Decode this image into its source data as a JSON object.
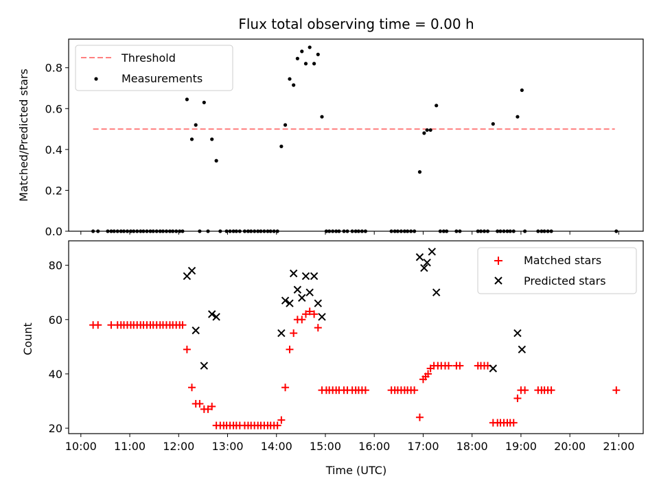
{
  "chart_data": [
    {
      "type": "scatter",
      "title": "Flux total observing time = 0.00 h",
      "xlabel": "",
      "ylabel": "Matched/Predicted stars",
      "xlim": [
        9.75,
        21.5
      ],
      "ylim": [
        0.0,
        0.94
      ],
      "yticks": [
        0.0,
        0.2,
        0.4,
        0.6,
        0.8
      ],
      "ytick_labels": [
        "0.0",
        "0.2",
        "0.4",
        "0.6",
        "0.8"
      ],
      "legend_position": "top-left",
      "series": [
        {
          "name": "Threshold",
          "kind": "dashed-line",
          "color": "#ff7f7f",
          "points": [
            [
              10.25,
              0.5
            ],
            [
              20.92,
              0.5
            ]
          ]
        },
        {
          "name": "Measurements",
          "kind": "dots",
          "color": "#000000",
          "points": [
            [
              10.25,
              0
            ],
            [
              10.35,
              0
            ],
            [
              10.55,
              0
            ],
            [
              10.62,
              0
            ],
            [
              10.68,
              0
            ],
            [
              10.75,
              0
            ],
            [
              10.82,
              0
            ],
            [
              10.88,
              0
            ],
            [
              10.95,
              0
            ],
            [
              11.02,
              0
            ],
            [
              11.08,
              0
            ],
            [
              11.15,
              0
            ],
            [
              11.22,
              0
            ],
            [
              11.28,
              0
            ],
            [
              11.35,
              0
            ],
            [
              11.42,
              0
            ],
            [
              11.48,
              0
            ],
            [
              11.55,
              0
            ],
            [
              11.62,
              0
            ],
            [
              11.68,
              0
            ],
            [
              11.75,
              0
            ],
            [
              11.82,
              0
            ],
            [
              11.88,
              0
            ],
            [
              11.95,
              0
            ],
            [
              12.02,
              0
            ],
            [
              12.08,
              0
            ],
            [
              12.17,
              0.645
            ],
            [
              12.27,
              0.45
            ],
            [
              12.35,
              0.52
            ],
            [
              12.43,
              0
            ],
            [
              12.52,
              0.63
            ],
            [
              12.6,
              0
            ],
            [
              12.68,
              0.45
            ],
            [
              12.77,
              0.345
            ],
            [
              12.85,
              0
            ],
            [
              12.98,
              0
            ],
            [
              13.05,
              0
            ],
            [
              13.12,
              0
            ],
            [
              13.18,
              0
            ],
            [
              13.25,
              0
            ],
            [
              13.35,
              0
            ],
            [
              13.42,
              0
            ],
            [
              13.48,
              0
            ],
            [
              13.55,
              0
            ],
            [
              13.62,
              0
            ],
            [
              13.68,
              0
            ],
            [
              13.75,
              0
            ],
            [
              13.82,
              0
            ],
            [
              13.88,
              0
            ],
            [
              13.95,
              0
            ],
            [
              14.02,
              0
            ],
            [
              14.1,
              0.415
            ],
            [
              14.18,
              0.52
            ],
            [
              14.27,
              0.745
            ],
            [
              14.35,
              0.715
            ],
            [
              14.43,
              0.845
            ],
            [
              14.52,
              0.88
            ],
            [
              14.6,
              0.82
            ],
            [
              14.68,
              0.9
            ],
            [
              14.77,
              0.82
            ],
            [
              14.85,
              0.865
            ],
            [
              14.93,
              0.56
            ],
            [
              15.02,
              0
            ],
            [
              15.08,
              0
            ],
            [
              15.15,
              0
            ],
            [
              15.22,
              0
            ],
            [
              15.28,
              0
            ],
            [
              15.38,
              0
            ],
            [
              15.45,
              0
            ],
            [
              15.55,
              0
            ],
            [
              15.62,
              0
            ],
            [
              15.68,
              0
            ],
            [
              15.75,
              0
            ],
            [
              15.82,
              0
            ],
            [
              16.35,
              0
            ],
            [
              16.42,
              0
            ],
            [
              16.48,
              0
            ],
            [
              16.55,
              0
            ],
            [
              16.62,
              0
            ],
            [
              16.68,
              0
            ],
            [
              16.75,
              0
            ],
            [
              16.82,
              0
            ],
            [
              16.93,
              0.29
            ],
            [
              17.02,
              0.48
            ],
            [
              17.08,
              0.495
            ],
            [
              17.15,
              0.495
            ],
            [
              17.27,
              0.615
            ],
            [
              17.35,
              0
            ],
            [
              17.42,
              0
            ],
            [
              17.48,
              0
            ],
            [
              17.68,
              0
            ],
            [
              17.75,
              0
            ],
            [
              18.12,
              0
            ],
            [
              18.18,
              0
            ],
            [
              18.25,
              0
            ],
            [
              18.32,
              0
            ],
            [
              18.43,
              0.525
            ],
            [
              18.52,
              0
            ],
            [
              18.58,
              0
            ],
            [
              18.65,
              0
            ],
            [
              18.72,
              0
            ],
            [
              18.78,
              0
            ],
            [
              18.85,
              0
            ],
            [
              18.93,
              0.56
            ],
            [
              19.02,
              0.69
            ],
            [
              19.08,
              0
            ],
            [
              19.35,
              0
            ],
            [
              19.42,
              0
            ],
            [
              19.48,
              0
            ],
            [
              19.55,
              0
            ],
            [
              19.62,
              0
            ],
            [
              20.95,
              0
            ]
          ]
        }
      ]
    },
    {
      "type": "scatter",
      "title": "",
      "xlabel": "Time (UTC)",
      "ylabel": "Count",
      "xlim": [
        9.75,
        21.5
      ],
      "ylim": [
        18,
        89
      ],
      "xticks": [
        10,
        11,
        12,
        13,
        14,
        15,
        16,
        17,
        18,
        19,
        20,
        21
      ],
      "xtick_labels": [
        "10:00",
        "11:00",
        "12:00",
        "13:00",
        "14:00",
        "15:00",
        "16:00",
        "17:00",
        "18:00",
        "19:00",
        "20:00",
        "21:00"
      ],
      "yticks": [
        20,
        40,
        60,
        80
      ],
      "ytick_labels": [
        "20",
        "40",
        "60",
        "80"
      ],
      "legend_position": "top-right",
      "series": [
        {
          "name": "Matched stars",
          "kind": "plus",
          "color": "#ff0000",
          "points": [
            [
              10.25,
              58
            ],
            [
              10.35,
              58
            ],
            [
              10.62,
              58
            ],
            [
              10.75,
              58
            ],
            [
              10.82,
              58
            ],
            [
              10.88,
              58
            ],
            [
              10.95,
              58
            ],
            [
              11.02,
              58
            ],
            [
              11.08,
              58
            ],
            [
              11.15,
              58
            ],
            [
              11.22,
              58
            ],
            [
              11.28,
              58
            ],
            [
              11.35,
              58
            ],
            [
              11.42,
              58
            ],
            [
              11.48,
              58
            ],
            [
              11.55,
              58
            ],
            [
              11.62,
              58
            ],
            [
              11.68,
              58
            ],
            [
              11.75,
              58
            ],
            [
              11.82,
              58
            ],
            [
              11.88,
              58
            ],
            [
              11.95,
              58
            ],
            [
              12.02,
              58
            ],
            [
              12.08,
              58
            ],
            [
              12.17,
              49
            ],
            [
              12.27,
              35
            ],
            [
              12.35,
              29
            ],
            [
              12.43,
              29
            ],
            [
              12.52,
              27
            ],
            [
              12.6,
              27
            ],
            [
              12.68,
              28
            ],
            [
              12.77,
              21
            ],
            [
              12.85,
              21
            ],
            [
              12.92,
              21
            ],
            [
              12.98,
              21
            ],
            [
              13.05,
              21
            ],
            [
              13.12,
              21
            ],
            [
              13.18,
              21
            ],
            [
              13.25,
              21
            ],
            [
              13.35,
              21
            ],
            [
              13.42,
              21
            ],
            [
              13.48,
              21
            ],
            [
              13.55,
              21
            ],
            [
              13.62,
              21
            ],
            [
              13.68,
              21
            ],
            [
              13.75,
              21
            ],
            [
              13.82,
              21
            ],
            [
              13.88,
              21
            ],
            [
              13.95,
              21
            ],
            [
              14.02,
              21
            ],
            [
              14.1,
              23
            ],
            [
              14.18,
              35
            ],
            [
              14.27,
              49
            ],
            [
              14.35,
              55
            ],
            [
              14.43,
              60
            ],
            [
              14.52,
              60
            ],
            [
              14.6,
              62
            ],
            [
              14.68,
              63
            ],
            [
              14.77,
              62
            ],
            [
              14.85,
              57
            ],
            [
              14.93,
              34
            ],
            [
              15.02,
              34
            ],
            [
              15.08,
              34
            ],
            [
              15.15,
              34
            ],
            [
              15.22,
              34
            ],
            [
              15.28,
              34
            ],
            [
              15.38,
              34
            ],
            [
              15.45,
              34
            ],
            [
              15.55,
              34
            ],
            [
              15.62,
              34
            ],
            [
              15.68,
              34
            ],
            [
              15.75,
              34
            ],
            [
              15.82,
              34
            ],
            [
              16.35,
              34
            ],
            [
              16.42,
              34
            ],
            [
              16.48,
              34
            ],
            [
              16.55,
              34
            ],
            [
              16.62,
              34
            ],
            [
              16.68,
              34
            ],
            [
              16.75,
              34
            ],
            [
              16.82,
              34
            ],
            [
              16.93,
              24
            ],
            [
              17.0,
              38
            ],
            [
              17.05,
              39
            ],
            [
              17.1,
              40
            ],
            [
              17.15,
              42
            ],
            [
              17.22,
              43
            ],
            [
              17.3,
              43
            ],
            [
              17.37,
              43
            ],
            [
              17.45,
              43
            ],
            [
              17.52,
              43
            ],
            [
              17.68,
              43
            ],
            [
              17.75,
              43
            ],
            [
              18.12,
              43
            ],
            [
              18.18,
              43
            ],
            [
              18.25,
              43
            ],
            [
              18.32,
              43
            ],
            [
              18.43,
              22
            ],
            [
              18.52,
              22
            ],
            [
              18.58,
              22
            ],
            [
              18.65,
              22
            ],
            [
              18.72,
              22
            ],
            [
              18.78,
              22
            ],
            [
              18.85,
              22
            ],
            [
              18.93,
              31
            ],
            [
              19.0,
              34
            ],
            [
              19.08,
              34
            ],
            [
              19.35,
              34
            ],
            [
              19.42,
              34
            ],
            [
              19.48,
              34
            ],
            [
              19.55,
              34
            ],
            [
              19.62,
              34
            ],
            [
              20.95,
              34
            ]
          ]
        },
        {
          "name": "Predicted stars",
          "kind": "x",
          "color": "#000000",
          "points": [
            [
              12.17,
              76
            ],
            [
              12.27,
              78
            ],
            [
              12.35,
              56
            ],
            [
              12.52,
              43
            ],
            [
              12.68,
              62
            ],
            [
              12.77,
              61
            ],
            [
              14.1,
              55
            ],
            [
              14.18,
              67
            ],
            [
              14.27,
              66
            ],
            [
              14.35,
              77
            ],
            [
              14.43,
              71
            ],
            [
              14.52,
              68
            ],
            [
              14.6,
              76
            ],
            [
              14.68,
              70
            ],
            [
              14.77,
              76
            ],
            [
              14.85,
              66
            ],
            [
              14.93,
              61
            ],
            [
              16.93,
              83
            ],
            [
              17.02,
              79
            ],
            [
              17.08,
              81
            ],
            [
              17.18,
              85
            ],
            [
              17.27,
              70
            ],
            [
              18.43,
              42
            ],
            [
              18.93,
              55
            ],
            [
              19.02,
              49
            ]
          ]
        }
      ]
    }
  ]
}
